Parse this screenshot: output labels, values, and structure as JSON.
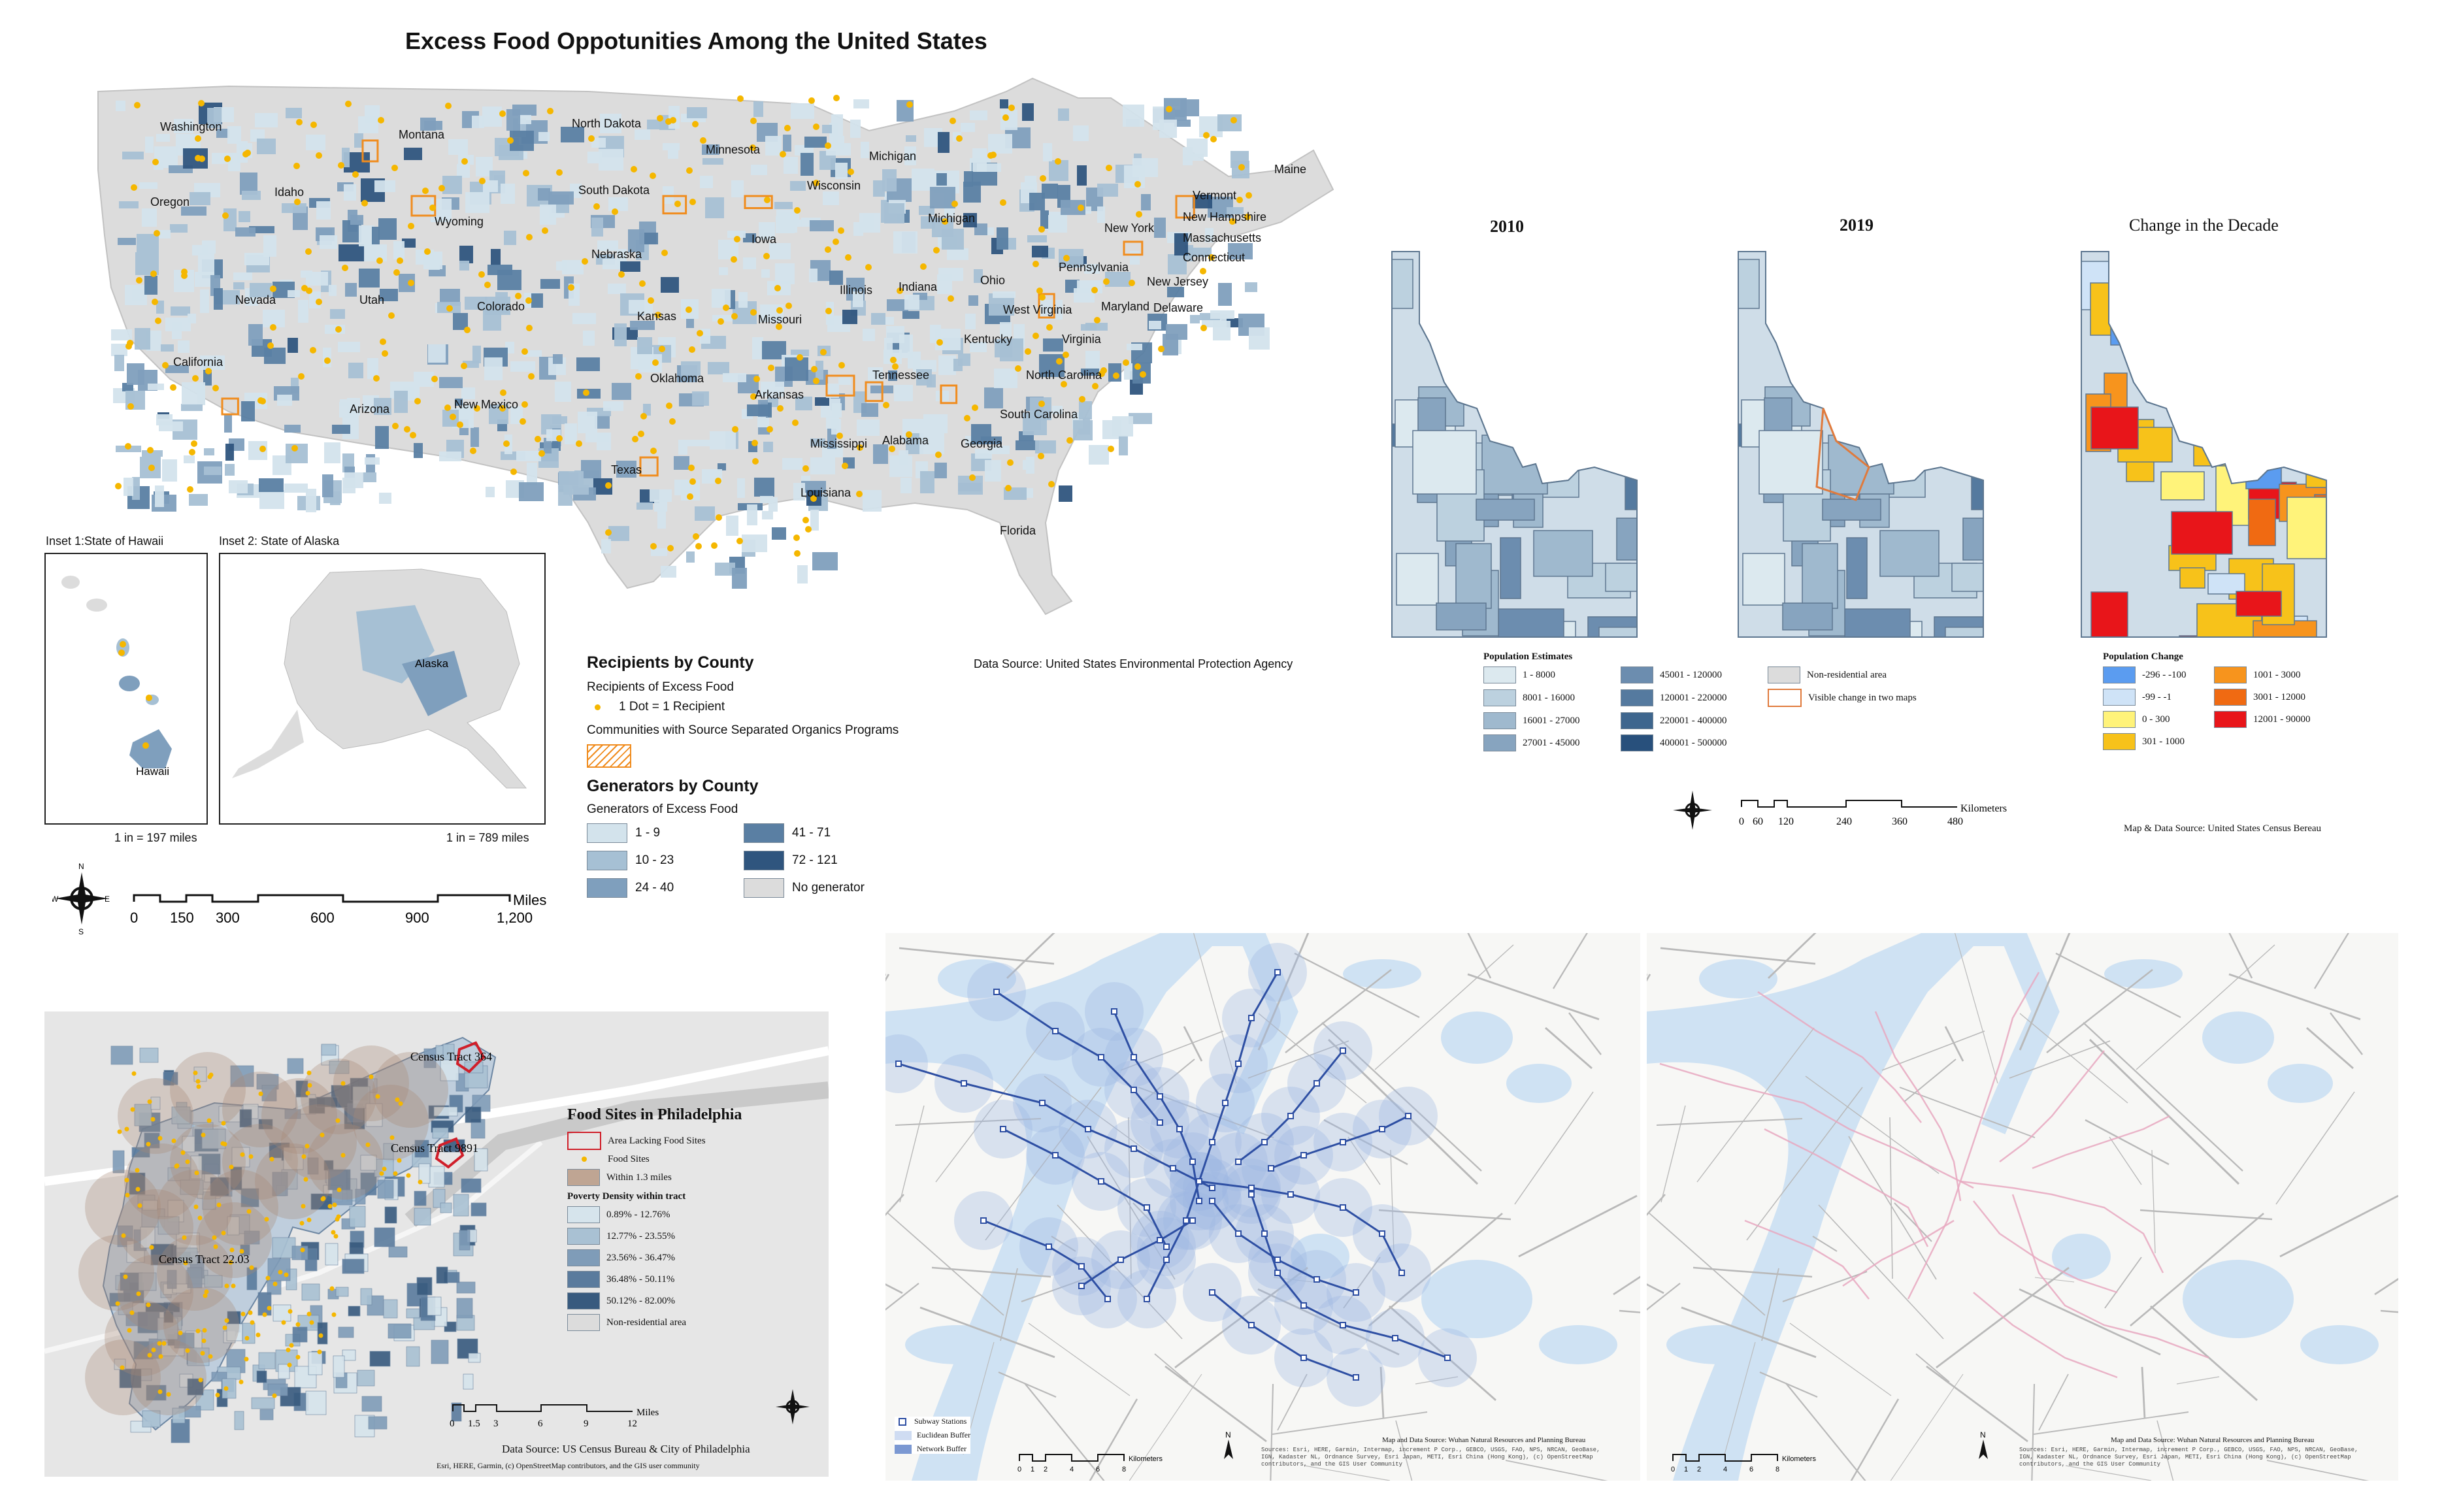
{
  "us_map": {
    "title": "Excess Food Oppotunities Among the United States",
    "state_labels": [
      "Washington",
      "Montana",
      "North Dakota",
      "Minnesota",
      "Michigan",
      "Maine",
      "Oregon",
      "Idaho",
      "South Dakota",
      "Wisconsin",
      "Wyoming",
      "Iowa",
      "Nebraska",
      "Michigan",
      "Vermont",
      "New Hampshire",
      "New York",
      "Massachusetts",
      "Connecticut",
      "Nevada",
      "Utah",
      "Colorado",
      "Kansas",
      "Missouri",
      "Illinois",
      "Indiana",
      "Ohio",
      "Pennsylvania",
      "New Jersey",
      "Maryland",
      "Delaware",
      "West Virginia",
      "Virginia",
      "Kentucky",
      "California",
      "Oklahoma",
      "Tennessee",
      "North Carolina",
      "Arizona",
      "New Mexico",
      "Arkansas",
      "South Carolina",
      "Texas",
      "Mississippi",
      "Alabama",
      "Georgia",
      "Louisiana",
      "Florida",
      "Alaska",
      "Hawaii"
    ],
    "inset_hawaii_title": "Inset 1:State of Hawaii",
    "inset_alaska_title": "Inset 2: State of Alaska",
    "inset_hawaii_scale": "1 in = 197 miles",
    "inset_alaska_scale": "1 in = 789 miles",
    "data_source": "Data Source: United States Environmental Protection Agency",
    "legend": {
      "recipients_title": "Recipients by County",
      "recipients_sub": "Recipients of Excess Food",
      "dot_label": "1 Dot = 1 Recipient",
      "organics_label": "Communities with Source Separated Organics Programs",
      "generators_title": "Generators by County",
      "generators_sub": "Generators of Excess Food",
      "classes": [
        {
          "label": "1 - 9",
          "color": "#d3e3ec"
        },
        {
          "label": "10 - 23",
          "color": "#a6c0d4"
        },
        {
          "label": "24 - 40",
          "color": "#7f9fbd"
        },
        {
          "label": "41 - 71",
          "color": "#5a7fa3"
        },
        {
          "label": "72 - 121",
          "color": "#2f557e"
        },
        {
          "label": "No generator",
          "color": "#dcdcdc"
        }
      ]
    },
    "scale_labels": [
      "0",
      "150",
      "300",
      "600",
      "900",
      "1,200"
    ],
    "scale_unit": "Miles"
  },
  "idaho": {
    "titles": [
      "2010",
      "2019",
      "Change in the Decade"
    ],
    "pop_title": "Population Estimates",
    "pop_classes": [
      {
        "label": "1 - 8000",
        "color": "#dce9ef"
      },
      {
        "label": "8001 - 16000",
        "color": "#bcd1df"
      },
      {
        "label": "16001 - 27000",
        "color": "#9fb9ce"
      },
      {
        "label": "27001 - 45000",
        "color": "#87a4bf"
      },
      {
        "label": "45001 - 120000",
        "color": "#6c8daf"
      },
      {
        "label": "120001 - 220000",
        "color": "#557a9f"
      },
      {
        "label": "220001 - 400000",
        "color": "#3e668e"
      },
      {
        "label": "400001 - 500000",
        "color": "#28507c"
      }
    ],
    "nonres_label": "Non-residential area",
    "visible_change_label": "Visible change in two maps",
    "change_title": "Population Change",
    "change_classes": [
      {
        "label": "-296 - -100",
        "color": "#5b9cf0"
      },
      {
        "label": "-99 - -1",
        "color": "#cfe3f7"
      },
      {
        "label": "0 - 300",
        "color": "#fff37a"
      },
      {
        "label": "301 - 1000",
        "color": "#f7c21a"
      },
      {
        "label": "1001 - 3000",
        "color": "#f7941d"
      },
      {
        "label": "3001 - 12000",
        "color": "#f06a12"
      },
      {
        "label": "12001 - 90000",
        "color": "#e8151a"
      }
    ],
    "scale_labels": [
      "0",
      "60",
      "120",
      "240",
      "360",
      "480"
    ],
    "scale_unit": "Kilometers",
    "source": "Map & Data Source: United States Census Bereau"
  },
  "philly": {
    "title": "Food Sites in Philadelphia",
    "labels": [
      "Census Tract 364",
      "Census Tract 9891",
      "Census Tract 22.03"
    ],
    "legend": {
      "lacking": "Area Lacking Food Sites",
      "sites": "Food Sites",
      "within": "Within 1.3 miles",
      "poverty_title": "Poverty Density within tract",
      "classes": [
        {
          "label": "0.89% - 12.76%",
          "color": "#d6e4ec"
        },
        {
          "label": "12.77% - 23.55%",
          "color": "#a9c1d3"
        },
        {
          "label": "23.56% - 36.47%",
          "color": "#7f9cb8"
        },
        {
          "label": "36.48% - 50.11%",
          "color": "#5a7b9d"
        },
        {
          "label": "50.12% - 82.00%",
          "color": "#385a7e"
        }
      ],
      "nonres": "Non-residential area"
    },
    "scale_labels": [
      "0",
      "1.5",
      "3",
      "6",
      "9",
      "12"
    ],
    "scale_unit": "Miles",
    "source": "Data Source: US Census Bureau & City of Philadelphia",
    "credits": "Esri, HERE, Garmin, (c) OpenStreetMap contributors, and the GIS user community"
  },
  "wuhan_left": {
    "legend": [
      "Subway Stations",
      "Euclidean Buffer",
      "Network Buffer"
    ],
    "scale_labels": [
      "0",
      "1",
      "2",
      "4",
      "6",
      "8"
    ],
    "scale_unit": "Kilometers",
    "source": "Map and Data Source: Wuhan Natural Resources and Planning Bureau",
    "credits": "Sources: Esri, HERE, Garmin, Intermap, increment P Corp., GEBCO, USGS, FAO, NPS, NRCAN, GeoBase, IGN, Kadaster NL, Ordnance Survey, Esri Japan, METI, Esri China (Hong Kong), (c) OpenStreetMap contributors, and the GIS User Community"
  },
  "wuhan_right": {
    "scale_labels": [
      "0",
      "1",
      "2",
      "4",
      "6",
      "8"
    ],
    "scale_unit": "Kilometers",
    "source": "Map and Data Source: Wuhan Natural Resources and Planning Bureau",
    "credits": "Sources: Esri, HERE, Garmin, Intermap, increment P Corp., GEBCO, USGS, FAO, NPS, NRCAN, GeoBase, IGN, Kadaster NL, Ordnance Survey, Esri Japan, METI, Esri China (Hong Kong), (c) OpenStreetMap contributors, and the GIS User Community"
  },
  "colors": {
    "dot": "#f5b700",
    "organics": "#f08c1e",
    "water": "#cfe2f3",
    "land": "#f3f3f3",
    "buffer": "#9db7e3",
    "line": "#2e4fa3",
    "pink": "#e8a8c0"
  }
}
